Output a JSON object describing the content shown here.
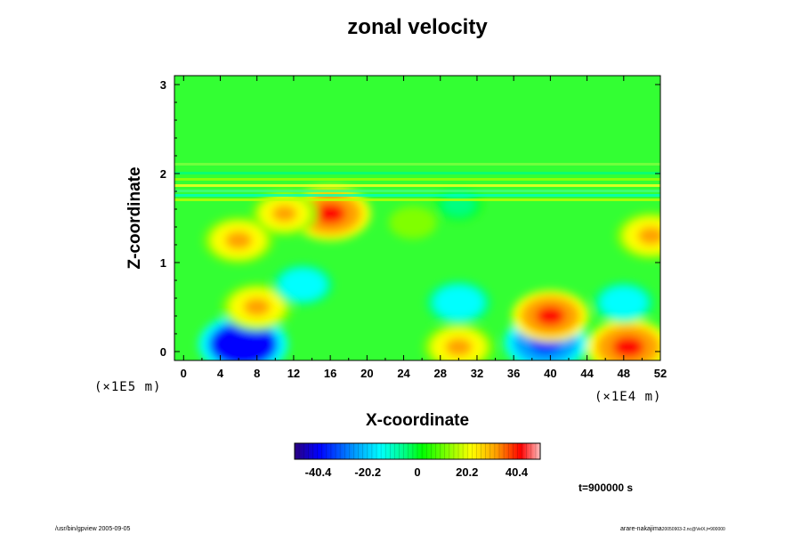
{
  "chart_data": {
    "type": "heatmap",
    "title": "zonal velocity",
    "xlabel": "X-coordinate",
    "ylabel": "Z-coordinate",
    "x_range": [
      -1,
      52
    ],
    "y_range": [
      -0.1,
      3.1
    ],
    "x_ticks": [
      "0",
      "4",
      "8",
      "12",
      "16",
      "20",
      "24",
      "28",
      "32",
      "36",
      "40",
      "44",
      "48",
      "52"
    ],
    "x_tick_values": [
      0,
      4,
      8,
      12,
      16,
      20,
      24,
      28,
      32,
      36,
      40,
      44,
      48,
      52
    ],
    "y_ticks": [
      "0",
      "1",
      "2",
      "3"
    ],
    "y_tick_values": [
      0,
      1,
      2,
      3
    ],
    "x_scale_label": "(×1E4 m)",
    "y_scale_label": "(×1E5 m)",
    "colorbar": {
      "range": [
        -50,
        50
      ],
      "tick_labels": [
        "-40.4",
        "-20.2",
        "0",
        "20.2",
        "40.4"
      ],
      "tick_values": [
        -40.4,
        -20.2,
        0,
        20.2,
        40.4
      ],
      "colormap": [
        "#2a0080",
        "#0000ff",
        "#00a0ff",
        "#00ffff",
        "#00ff80",
        "#00ff00",
        "#80ff00",
        "#ffff00",
        "#ffa000",
        "#ff0000",
        "#ffc0c0"
      ]
    },
    "features": [
      {
        "x": 6.5,
        "z": 0.08,
        "value": -45
      },
      {
        "x": 8,
        "z": 0.5,
        "value": 30
      },
      {
        "x": 13,
        "z": 0.75,
        "value": -22
      },
      {
        "x": 16,
        "z": 1.55,
        "value": 38
      },
      {
        "x": 11,
        "z": 1.55,
        "value": 26
      },
      {
        "x": 6,
        "z": 1.25,
        "value": 30
      },
      {
        "x": 30,
        "z": 0.05,
        "value": 30
      },
      {
        "x": 30,
        "z": 0.55,
        "value": -25
      },
      {
        "x": 39.5,
        "z": 0.1,
        "value": -40
      },
      {
        "x": 40,
        "z": 0.4,
        "value": 35
      },
      {
        "x": 48.5,
        "z": 0.05,
        "value": 40
      },
      {
        "x": 48,
        "z": 0.55,
        "value": -22
      },
      {
        "x": 51,
        "z": 1.3,
        "value": 30
      },
      {
        "x": 25,
        "z": 1.45,
        "value": 12
      },
      {
        "x": 30,
        "z": 1.65,
        "value": -10
      }
    ]
  },
  "time_label": "t=900000 s",
  "footer_left": "/usr/bin/gpview 2005-09-05",
  "footer_right": "arare-nakajima",
  "footer_right_small": "20050903-2.nc@VelX,t=900000"
}
